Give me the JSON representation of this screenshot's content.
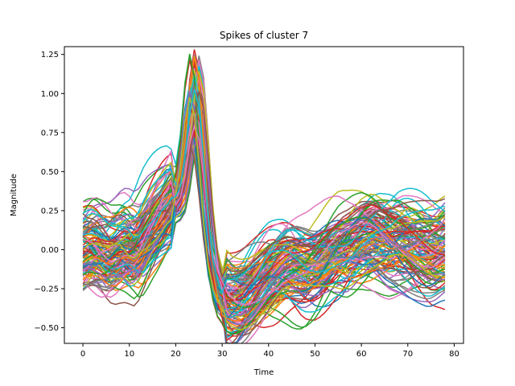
{
  "chart_data": {
    "type": "line",
    "title": "Spikes of cluster 7",
    "xlabel": "Time",
    "ylabel": "Magnitude",
    "xlim": [
      -4,
      82
    ],
    "ylim": [
      -0.6,
      1.3
    ],
    "xticks": [
      0,
      10,
      20,
      30,
      40,
      50,
      60,
      70,
      80
    ],
    "yticks": [
      -0.5,
      -0.25,
      0.0,
      0.25,
      0.5,
      0.75,
      1.0,
      1.25
    ],
    "ytick_labels": [
      "−0.50",
      "−0.25",
      "0.00",
      "0.25",
      "0.50",
      "0.75",
      "1.00",
      "1.25"
    ],
    "grid": false,
    "legend": "none",
    "x_range": [
      0,
      78
    ],
    "num_series": 120,
    "colors": [
      "#1f77b4",
      "#ff7f0e",
      "#2ca02c",
      "#d62728",
      "#9467bd",
      "#8c564b",
      "#e377c2",
      "#7f7f7f",
      "#bcbd22",
      "#17becf"
    ],
    "waveform_template": {
      "baseline": [
        0.0,
        0.02,
        0.03,
        0.02,
        0.0,
        -0.02,
        -0.03,
        -0.02,
        0.0,
        0.01,
        0.0,
        -0.02,
        0.0,
        0.05,
        0.1,
        0.14,
        0.18,
        0.22,
        0.26,
        0.3,
        0.32,
        0.38,
        0.55,
        0.82,
        0.97,
        0.86,
        0.55,
        0.18,
        -0.08,
        -0.22,
        -0.3,
        -0.33,
        -0.34,
        -0.34,
        -0.33,
        -0.31,
        -0.28,
        -0.25,
        -0.22,
        -0.19,
        -0.16,
        -0.14,
        -0.12,
        -0.1,
        -0.09,
        -0.09,
        -0.1,
        -0.11,
        -0.12,
        -0.12,
        -0.11,
        -0.1,
        -0.08,
        -0.06,
        -0.04,
        -0.02,
        -0.01,
        0.0,
        0.02,
        0.04,
        0.06,
        0.07,
        0.08,
        0.08,
        0.07,
        0.06,
        0.05,
        0.05,
        0.05,
        0.04,
        0.03,
        0.02,
        0.01,
        0.0,
        -0.01,
        -0.02,
        -0.02,
        -0.01,
        0.0
      ]
    }
  }
}
